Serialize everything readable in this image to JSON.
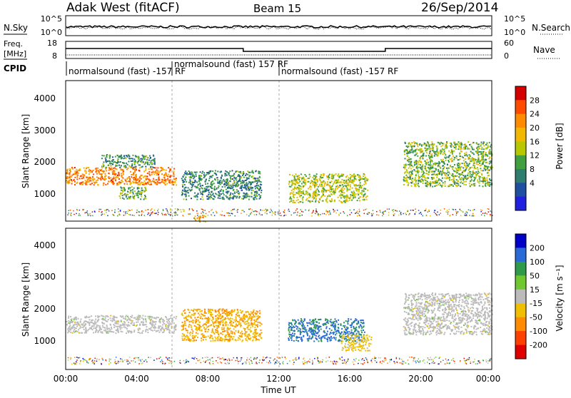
{
  "header": {
    "station": "Adak West (fitACF)",
    "beam": "Beam 15",
    "date": "26/Sep/2014"
  },
  "noise_panel": {
    "left_label": "N.Sky",
    "right_label": "N.Search",
    "left_ticks": [
      "10^5",
      "10^0"
    ],
    "right_ticks": [
      "10^5",
      "10^0"
    ]
  },
  "freq_panel": {
    "left_label_line1": "Freq.",
    "left_label_line2": "[MHz]",
    "right_label": "Nave",
    "left_ticks": [
      "18",
      "8"
    ],
    "right_ticks": [
      "60",
      "0"
    ],
    "cpid_label": "CPID",
    "cpid_segments": [
      {
        "label": "normalsound (fast) -157 RF",
        "start_hour": 0
      },
      {
        "label": "normalsound (fast) 157 RF",
        "start_hour": 6
      },
      {
        "label": "normalsound (fast) -157 RF",
        "start_hour": 12
      }
    ],
    "freq_series": {
      "x": [
        0,
        10,
        10,
        18,
        18,
        24
      ],
      "y": [
        15,
        15,
        13,
        13,
        15,
        15
      ]
    }
  },
  "chart_data": [
    {
      "type": "heatmap",
      "title": "",
      "xlabel": "Time UT",
      "ylabel": "Slant Range [km]",
      "xlim": [
        0,
        24
      ],
      "ylim": [
        200,
        4600
      ],
      "x_ticks": [
        "00:00",
        "04:00",
        "08:00",
        "12:00",
        "16:00",
        "20:00",
        "00:00"
      ],
      "y_ticks": [
        "1000",
        "2000",
        "3000",
        "4000"
      ],
      "colorbar": {
        "label": "Power [dB]",
        "ticks": [
          "28",
          "24",
          "20",
          "16",
          "12",
          "8",
          "4"
        ],
        "colors": [
          "#d40000",
          "#ff4a00",
          "#ff8c00",
          "#f2b800",
          "#b8c800",
          "#40a040",
          "#2e7d6e",
          "#1e4fa0",
          "#2020e0"
        ],
        "range": [
          0,
          30
        ]
      },
      "regions": [
        {
          "x": [
            0.0,
            6.2
          ],
          "y": [
            1350,
            1900
          ],
          "value": 22
        },
        {
          "x": [
            2.0,
            5.0
          ],
          "y": [
            1900,
            2300
          ],
          "value": 10
        },
        {
          "x": [
            3.0,
            4.5
          ],
          "y": [
            900,
            1300
          ],
          "value": 12
        },
        {
          "x": [
            6.5,
            11.0
          ],
          "y": [
            900,
            1800
          ],
          "value": 9
        },
        {
          "x": [
            7.2,
            7.9
          ],
          "y": [
            200,
            400
          ],
          "value": 20
        },
        {
          "x": [
            12.5,
            17.0
          ],
          "y": [
            800,
            1700
          ],
          "value": 15
        },
        {
          "x": [
            19.0,
            24.0
          ],
          "y": [
            1300,
            2700
          ],
          "value": 13
        }
      ]
    },
    {
      "type": "heatmap",
      "title": "",
      "xlabel": "Time UT",
      "ylabel": "Slant Range [km]",
      "xlim": [
        0,
        24
      ],
      "ylim": [
        200,
        4600
      ],
      "x_ticks": [
        "00:00",
        "04:00",
        "08:00",
        "12:00",
        "16:00",
        "20:00",
        "00:00"
      ],
      "y_ticks": [
        "1000",
        "2000",
        "3000",
        "4000"
      ],
      "colorbar": {
        "label": "Velocity [m s⁻¹]",
        "ticks": [
          "200",
          "100",
          "50",
          "15",
          "-15",
          "-50",
          "-100",
          "-200"
        ],
        "colors": [
          "#0000c8",
          "#2a6ad8",
          "#2e9a4a",
          "#70c830",
          "#bbbbbb",
          "#f0c000",
          "#ff8c00",
          "#ff4000",
          "#e00000"
        ],
        "range": [
          -250,
          250
        ]
      },
      "regions": [
        {
          "x": [
            0.0,
            6.2
          ],
          "y": [
            1350,
            1900
          ],
          "value": 0
        },
        {
          "x": [
            6.5,
            11.0
          ],
          "y": [
            1100,
            2100
          ],
          "value": -80
        },
        {
          "x": [
            12.5,
            16.8
          ],
          "y": [
            1100,
            1800
          ],
          "value": 150
        },
        {
          "x": [
            15.5,
            17.2
          ],
          "y": [
            800,
            1300
          ],
          "value": -50
        },
        {
          "x": [
            19.0,
            24.0
          ],
          "y": [
            1300,
            2600
          ],
          "value": 0
        }
      ]
    }
  ]
}
